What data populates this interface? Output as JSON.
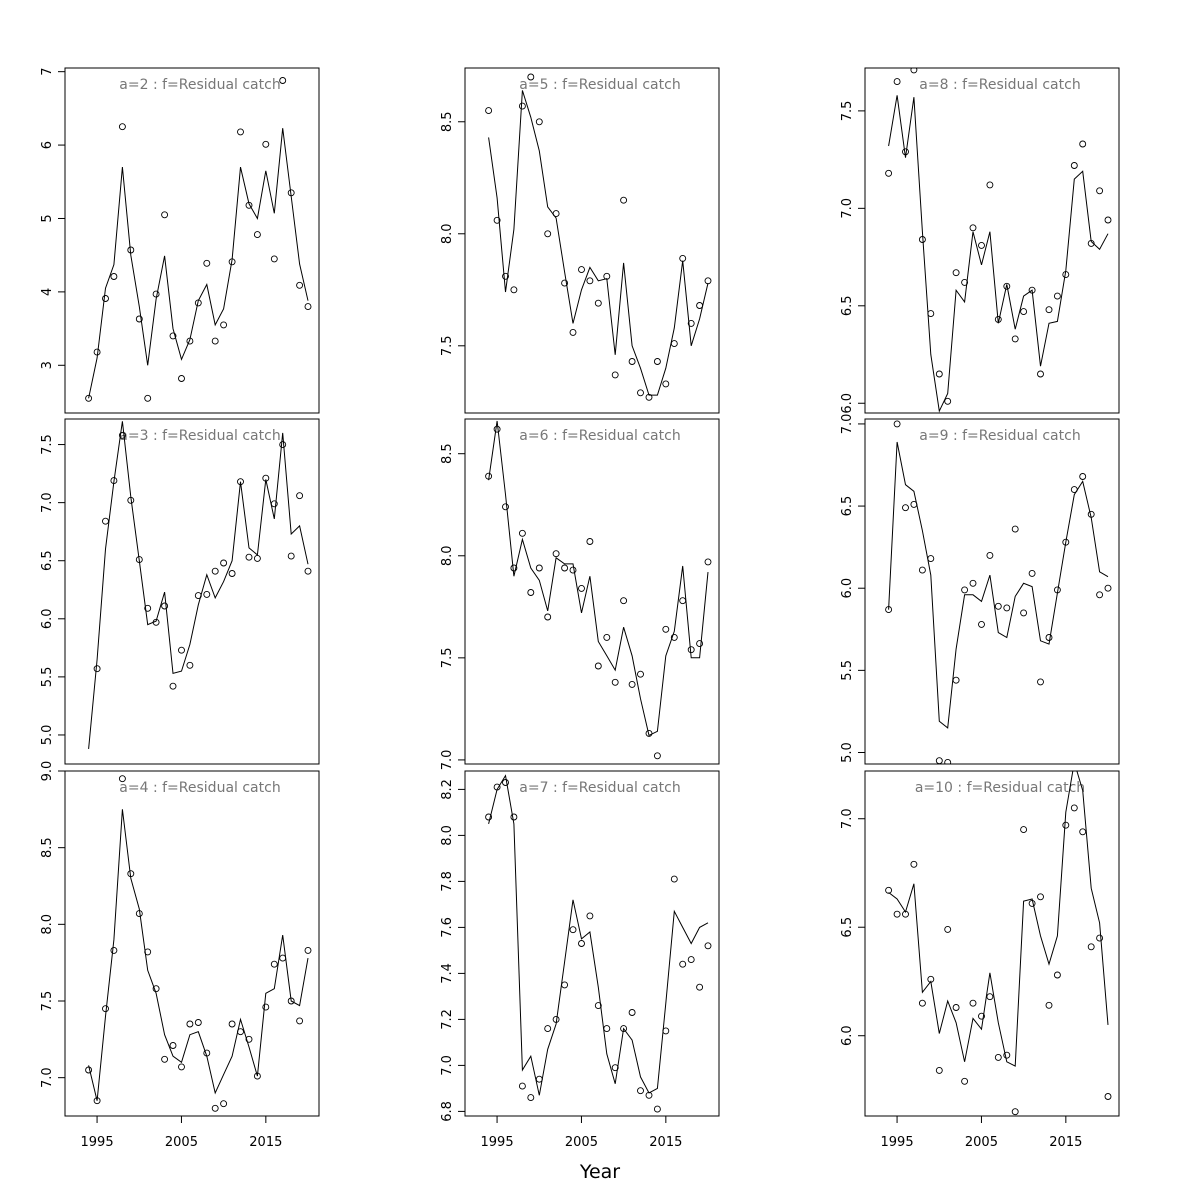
{
  "chart_data": {
    "type": "scatter",
    "xlabel": "Year",
    "x_ticks": [
      1995,
      2005,
      2015
    ],
    "x": [
      1994,
      1995,
      1996,
      1997,
      1998,
      1999,
      2000,
      2001,
      2002,
      2003,
      2004,
      2005,
      2006,
      2007,
      2008,
      2009,
      2010,
      2011,
      2012,
      2013,
      2014,
      2015,
      2016,
      2017,
      2018,
      2019,
      2020
    ],
    "panels": [
      {
        "title": "a=2  :  f=Residual catch",
        "ylim": [
          2.35,
          7.05
        ],
        "y_ticks": [
          3,
          4,
          5,
          6,
          7
        ],
        "points": [
          2.55,
          3.18,
          3.91,
          4.21,
          6.25,
          4.57,
          3.63,
          2.55,
          3.97,
          5.05,
          3.4,
          2.82,
          3.33,
          3.85,
          4.39,
          3.33,
          3.55,
          4.41,
          6.18,
          5.18,
          4.78,
          6.01,
          4.45,
          6.88,
          5.35,
          4.09,
          3.8
        ],
        "line": [
          2.55,
          3.1,
          4.05,
          4.37,
          5.7,
          4.5,
          3.8,
          3.0,
          3.9,
          4.49,
          3.5,
          3.08,
          3.35,
          3.88,
          4.1,
          3.55,
          3.77,
          4.44,
          5.7,
          5.2,
          5.0,
          5.65,
          5.07,
          6.23,
          5.3,
          4.38,
          3.88
        ]
      },
      {
        "title": "a=5  :  f=Residual catch",
        "ylim": [
          7.2,
          8.74
        ],
        "y_ticks": [
          7.5,
          8.0,
          8.5
        ],
        "points": [
          8.55,
          8.06,
          7.81,
          7.75,
          8.57,
          8.7,
          8.5,
          8.0,
          8.09,
          7.78,
          7.56,
          7.84,
          7.79,
          7.69,
          7.81,
          7.37,
          8.15,
          7.43,
          7.29,
          7.27,
          7.43,
          7.33,
          7.51,
          7.89,
          7.6,
          7.68,
          7.79
        ],
        "line": [
          8.43,
          8.16,
          7.74,
          8.02,
          8.64,
          8.52,
          8.37,
          8.12,
          8.07,
          7.83,
          7.6,
          7.75,
          7.85,
          7.79,
          7.8,
          7.46,
          7.87,
          7.5,
          7.4,
          7.28,
          7.28,
          7.4,
          7.58,
          7.88,
          7.5,
          7.62,
          7.78
        ]
      },
      {
        "title": "a=8  :  f=Residual catch",
        "ylim": [
          5.95,
          7.72
        ],
        "y_ticks": [
          6.0,
          6.5,
          7.0,
          7.5
        ],
        "points": [
          7.18,
          7.65,
          7.29,
          7.71,
          6.84,
          6.46,
          6.15,
          6.01,
          6.67,
          6.62,
          6.9,
          6.81,
          7.12,
          6.43,
          6.6,
          6.33,
          6.47,
          6.58,
          6.15,
          6.48,
          6.55,
          6.66,
          7.22,
          7.33,
          6.82,
          7.09,
          6.94
        ],
        "line": [
          7.32,
          7.58,
          7.26,
          7.57,
          6.88,
          6.25,
          5.96,
          6.05,
          6.58,
          6.52,
          6.88,
          6.71,
          6.88,
          6.41,
          6.61,
          6.38,
          6.55,
          6.58,
          6.19,
          6.41,
          6.42,
          6.68,
          7.15,
          7.19,
          6.83,
          6.79,
          6.87
        ]
      },
      {
        "title": "a=3  :  f=Residual catch",
        "ylim": [
          4.75,
          7.72
        ],
        "y_ticks": [
          5.0,
          5.5,
          6.0,
          6.5,
          7.0,
          7.5
        ],
        "points": [
          4.72,
          5.57,
          6.84,
          7.19,
          7.58,
          7.02,
          6.51,
          6.09,
          5.97,
          6.11,
          5.42,
          5.73,
          5.6,
          6.2,
          6.21,
          6.41,
          6.48,
          6.39,
          7.18,
          6.53,
          6.52,
          7.21,
          6.99,
          7.5,
          6.54,
          7.06,
          6.41
        ],
        "line": [
          4.88,
          5.65,
          6.6,
          7.18,
          7.7,
          7.05,
          6.5,
          5.95,
          5.98,
          6.23,
          5.53,
          5.55,
          5.78,
          6.12,
          6.38,
          6.18,
          6.32,
          6.5,
          7.18,
          6.61,
          6.55,
          7.2,
          6.86,
          7.6,
          6.73,
          6.8,
          6.47
        ]
      },
      {
        "title": "a=6  :  f=Residual catch",
        "ylim": [
          6.98,
          8.67
        ],
        "y_ticks": [
          7.0,
          7.5,
          8.0,
          8.5
        ],
        "points": [
          8.39,
          8.62,
          8.24,
          7.94,
          8.11,
          7.82,
          7.94,
          7.7,
          8.01,
          7.94,
          7.93,
          7.84,
          8.07,
          7.46,
          7.6,
          7.38,
          7.78,
          7.37,
          7.42,
          7.13,
          7.02,
          7.64,
          7.6,
          7.78,
          7.54,
          7.57,
          7.97
        ],
        "line": [
          8.37,
          8.66,
          8.3,
          7.9,
          8.08,
          7.94,
          7.88,
          7.73,
          7.99,
          7.96,
          7.96,
          7.72,
          7.9,
          7.58,
          7.51,
          7.44,
          7.65,
          7.51,
          7.3,
          7.12,
          7.14,
          7.51,
          7.63,
          7.95,
          7.5,
          7.5,
          7.92
        ]
      },
      {
        "title": "a=9  :  f=Residual catch",
        "ylim": [
          4.93,
          7.03
        ],
        "y_ticks": [
          5.0,
          5.5,
          6.0,
          6.5,
          7.0
        ],
        "points": [
          5.87,
          7.0,
          6.49,
          6.51,
          6.11,
          6.18,
          4.95,
          4.94,
          5.44,
          5.99,
          6.03,
          5.78,
          6.2,
          5.89,
          5.88,
          6.36,
          5.85,
          6.09,
          5.43,
          5.7,
          5.99,
          6.28,
          6.6,
          6.68,
          6.45,
          5.96,
          6.0
        ],
        "line": [
          5.87,
          6.89,
          6.63,
          6.59,
          6.35,
          6.08,
          5.19,
          5.15,
          5.63,
          5.96,
          5.96,
          5.92,
          6.08,
          5.73,
          5.7,
          5.95,
          6.03,
          6.01,
          5.68,
          5.66,
          5.97,
          6.28,
          6.57,
          6.65,
          6.43,
          6.1,
          6.07
        ]
      },
      {
        "title": "a=4  :  f=Residual catch",
        "ylim": [
          6.75,
          9.0
        ],
        "y_ticks": [
          7.0,
          7.5,
          8.0,
          8.5,
          9.0
        ],
        "points": [
          7.05,
          6.85,
          7.45,
          7.83,
          8.95,
          8.33,
          8.07,
          7.82,
          7.58,
          7.12,
          7.21,
          7.07,
          7.35,
          7.36,
          7.16,
          6.8,
          6.83,
          7.35,
          7.3,
          7.25,
          7.01,
          7.46,
          7.74,
          7.78,
          7.5,
          7.37,
          7.83
        ],
        "line": [
          7.08,
          6.85,
          7.4,
          7.9,
          8.75,
          8.3,
          8.1,
          7.7,
          7.55,
          7.28,
          7.14,
          7.1,
          7.28,
          7.3,
          7.14,
          6.9,
          7.02,
          7.14,
          7.38,
          7.2,
          7.01,
          7.55,
          7.58,
          7.93,
          7.5,
          7.47,
          7.78
        ]
      },
      {
        "title": "a=7  :  f=Residual catch",
        "ylim": [
          6.78,
          8.28
        ],
        "y_ticks": [
          6.8,
          7.0,
          7.2,
          7.4,
          7.6,
          7.8,
          8.0,
          8.2
        ],
        "points": [
          8.08,
          8.21,
          8.23,
          8.08,
          6.91,
          6.86,
          6.94,
          7.16,
          7.2,
          7.35,
          7.59,
          7.53,
          7.65,
          7.26,
          7.16,
          6.99,
          7.16,
          7.23,
          6.89,
          6.87,
          6.81,
          7.15,
          7.81,
          7.44,
          7.46,
          7.34,
          7.52
        ],
        "line": [
          8.05,
          8.2,
          8.26,
          8.05,
          6.98,
          7.04,
          6.87,
          7.07,
          7.18,
          7.45,
          7.72,
          7.55,
          7.58,
          7.34,
          7.05,
          6.92,
          7.16,
          7.11,
          6.95,
          6.88,
          6.9,
          7.27,
          7.67,
          7.6,
          7.53,
          7.6,
          7.62
        ]
      },
      {
        "title": "a=10  :  f=Residual catch",
        "ylim": [
          5.63,
          7.22
        ],
        "y_ticks": [
          6.0,
          6.5,
          7.0
        ],
        "points": [
          6.67,
          6.56,
          6.56,
          6.79,
          6.15,
          6.26,
          5.84,
          6.49,
          6.13,
          5.79,
          6.15,
          6.09,
          6.18,
          5.9,
          5.91,
          5.65,
          6.95,
          6.61,
          6.64,
          6.14,
          6.28,
          6.97,
          7.05,
          6.94,
          6.41,
          6.45,
          5.72
        ],
        "line": [
          6.66,
          6.63,
          6.57,
          6.7,
          6.2,
          6.25,
          6.01,
          6.16,
          6.06,
          5.88,
          6.08,
          6.03,
          6.29,
          6.06,
          5.88,
          5.86,
          6.62,
          6.63,
          6.46,
          6.33,
          6.46,
          7.03,
          7.26,
          7.13,
          6.68,
          6.52,
          6.05
        ]
      }
    ]
  }
}
